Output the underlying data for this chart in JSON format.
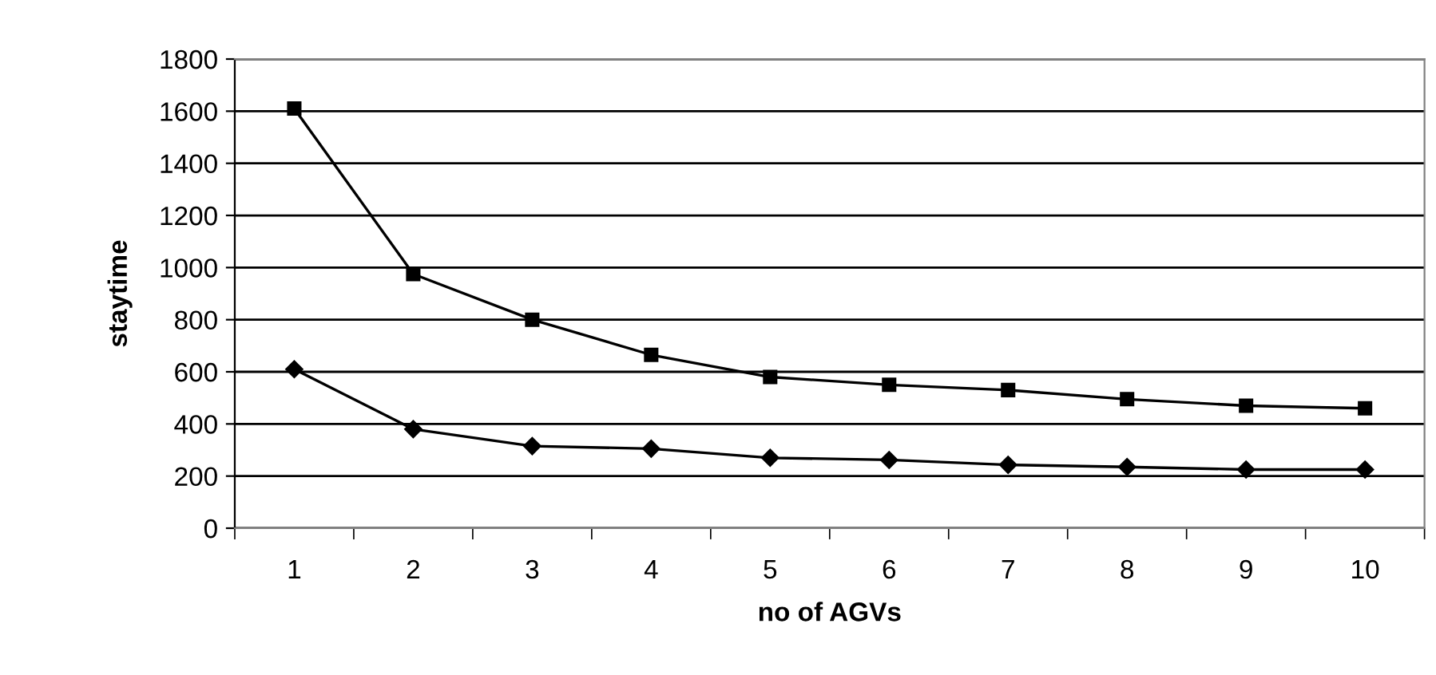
{
  "chart_data": {
    "type": "line",
    "xlabel": "no of AGVs",
    "ylabel": "staytime",
    "categories": [
      "1",
      "2",
      "3",
      "4",
      "5",
      "6",
      "7",
      "8",
      "9",
      "10"
    ],
    "series": [
      {
        "color": "#000000",
        "marker": "square",
        "values": [
          1610,
          975,
          800,
          665,
          580,
          550,
          530,
          495,
          470,
          460
        ]
      },
      {
        "color": "#000000",
        "marker": "diamond",
        "values": [
          610,
          380,
          315,
          305,
          270,
          262,
          243,
          235,
          225,
          225
        ]
      }
    ],
    "ylim": [
      0,
      1800
    ],
    "yticks": [
      0,
      200,
      400,
      600,
      800,
      1000,
      1200,
      1400,
      1600,
      1800
    ],
    "grid": "y",
    "line_style": "solid"
  }
}
